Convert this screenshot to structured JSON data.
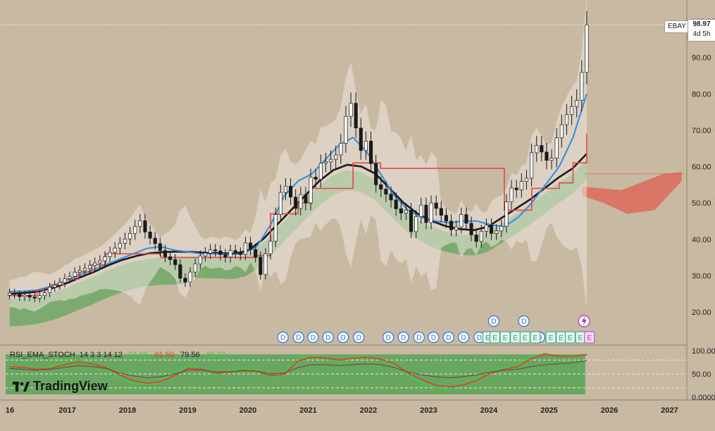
{
  "symbol": "EBAY",
  "last_price": "98.97",
  "countdown": "4d 5h",
  "chart_data": {
    "type": "candlestick",
    "timeframe": "monthly",
    "ylim": [
      15,
      102
    ],
    "y_ticks": [
      "100.00",
      "90.00",
      "80.00",
      "70.00",
      "60.00",
      "50.00",
      "40.00",
      "30.00",
      "20.00"
    ],
    "x_ticks": [
      "2016",
      "2017",
      "2018",
      "2019",
      "2020",
      "2021",
      "2022",
      "2023",
      "2024",
      "2025",
      "2026",
      "2027"
    ],
    "x_tick_labels": [
      "16",
      "2017",
      "2018",
      "2019",
      "2020",
      "2021",
      "2022",
      "2023",
      "2024",
      "2025",
      "2026",
      "2027"
    ],
    "start": 2016.0,
    "monthly_close": [
      25.2,
      24.8,
      24.2,
      24.6,
      24.1,
      23.8,
      24.5,
      25.3,
      26.8,
      27.4,
      28.1,
      29.2,
      29.8,
      30.9,
      31.4,
      32.0,
      32.8,
      33.5,
      34.1,
      35.2,
      36.4,
      37.6,
      38.9,
      40.1,
      41.6,
      43.5,
      45.1,
      42.0,
      40.3,
      38.8,
      36.9,
      35.2,
      34.4,
      33.0,
      29.3,
      28.2,
      31.0,
      33.2,
      35.4,
      36.2,
      37.1,
      36.8,
      35.8,
      35.1,
      36.9,
      36.2,
      35.8,
      39.0,
      37.2,
      35.1,
      30.3,
      36.0,
      39.5,
      46.8,
      52.9,
      54.6,
      51.6,
      48.5,
      52.3,
      50.0,
      57.1,
      56.5,
      60.9,
      61.3,
      62.0,
      63.2,
      66.4,
      73.8,
      77.4,
      70.6,
      64.4,
      67.0,
      60.8,
      55.0,
      53.8,
      52.4,
      50.8,
      48.4,
      47.2,
      48.0,
      42.1,
      46.2,
      49.4,
      44.6,
      50.0,
      48.5,
      46.6,
      45.0,
      42.6,
      43.4,
      46.8,
      44.4,
      41.2,
      39.4,
      42.2,
      43.9,
      41.6,
      42.3,
      43.6,
      50.3,
      54.1,
      53.6,
      55.9,
      56.8,
      63.8,
      65.8,
      64.0,
      61.7,
      62.3,
      67.9,
      71.5,
      74.3,
      76.5,
      78.2,
      85.9,
      99.0
    ],
    "series": [
      {
        "name": "",
        "kind": "ema-fast",
        "color": "#2f8fe0",
        "values": [
          25.6,
          25.7,
          26.0,
          27.0,
          28.5,
          30.0,
          31.5,
          33.0,
          34.5,
          36.0,
          37.5,
          38.0,
          37.0,
          36.5,
          36.0,
          36.0,
          35.8,
          36.0,
          38.0,
          44.0,
          52.0,
          56.0,
          58.0,
          62.0,
          66.0,
          68.0,
          64.0,
          58.0,
          52.0,
          48.0,
          46.0,
          45.0,
          44.5,
          45.0,
          45.0,
          44.0,
          43.5,
          46.0,
          50.0,
          55.0,
          60.0,
          68.0,
          80.0
        ]
      },
      {
        "name": "",
        "kind": "ema-slow",
        "color": "#1a1a1a",
        "values": [
          25.0,
          25.2,
          25.6,
          26.5,
          27.8,
          29.5,
          31.0,
          32.8,
          34.3,
          35.4,
          36.2,
          36.5,
          36.6,
          36.5,
          36.3,
          36.2,
          36.0,
          37.0,
          40.0,
          44.0,
          48.0,
          52.0,
          56.0,
          59.0,
          60.5,
          60.0,
          58.0,
          54.0,
          50.0,
          47.0,
          45.0,
          43.6,
          42.8,
          42.5,
          43.5,
          46.0,
          48.5,
          51.0,
          54.0,
          57.0,
          59.5,
          63.5
        ]
      },
      {
        "name": "",
        "kind": "baseline",
        "color": "#e04848",
        "values": [
          24.5,
          24.5,
          26.0,
          27.5,
          29.0,
          31.0,
          33.0,
          36.0,
          36.0,
          36.0,
          36.0,
          35.0,
          35.0,
          35.0,
          35.0,
          35.0,
          35.0,
          35.0,
          35.5,
          47.0,
          47.0,
          50.0,
          54.0,
          54.0,
          54.0,
          61.0,
          61.0,
          59.5,
          59.5,
          59.5,
          59.5,
          59.5,
          59.5,
          59.5,
          59.5,
          59.5,
          48.0,
          48.0,
          54.0,
          54.0,
          55.5,
          61.0,
          69.0
        ]
      }
    ],
    "cloud_a_label": "",
    "cloud_b_label": "",
    "events": {
      "dividends": [
        "D",
        "D",
        "D",
        "D",
        "D",
        "D",
        "D",
        "D",
        "D",
        "D",
        "D",
        "D",
        "D",
        "D",
        "D",
        "D",
        "D",
        "D"
      ],
      "earnings": [
        "E",
        "E",
        "E",
        "E",
        "E",
        "E",
        "E",
        "E",
        "E",
        "E",
        "E"
      ]
    },
    "indicator": {
      "name": "RSI_EMA_STOCH",
      "params": "14 3 3 14 12",
      "values": [
        "91.95",
        "91.50",
        "79.56",
        "66.73"
      ],
      "value_colors": [
        "#3ccf3c",
        "#e23d3d",
        "#1a1a1a",
        "#3ccf3c"
      ],
      "ylim": [
        0,
        100
      ],
      "y_ticks": [
        "100.00",
        "50.00",
        "0.0000"
      ]
    }
  },
  "branding": {
    "logo_text": "TradingView"
  },
  "colors": {
    "background": "#c8b9a3",
    "bull": "#ffffff",
    "bear": "#1a1a1a",
    "ema_fast": "#2f8fe0",
    "ema_slow": "#1a1a1a",
    "baseline": "#e04848",
    "cloud_bull": "#3e9f45",
    "cloud_bear": "#e05a4c",
    "band_fill": "#ece6dc"
  }
}
